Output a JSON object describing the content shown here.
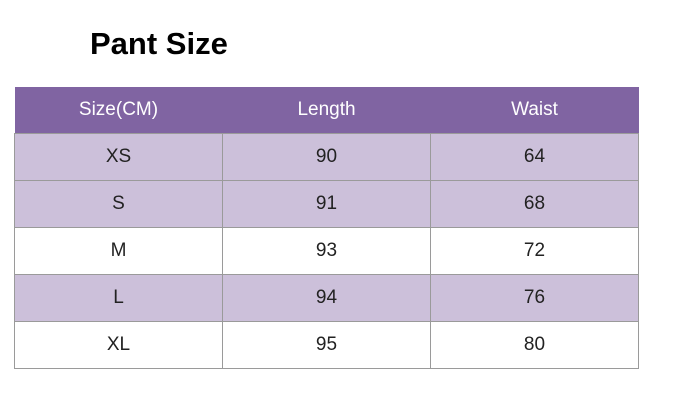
{
  "header": {
    "title": "Pant Size"
  },
  "table": {
    "columns": [
      "Size(CM)",
      "Length",
      "Waist"
    ],
    "rows": [
      [
        "XS",
        90,
        64
      ],
      [
        "S",
        91,
        68
      ],
      [
        "M",
        93,
        72
      ],
      [
        "L",
        94,
        76
      ],
      [
        "XL",
        95,
        80
      ]
    ]
  }
}
